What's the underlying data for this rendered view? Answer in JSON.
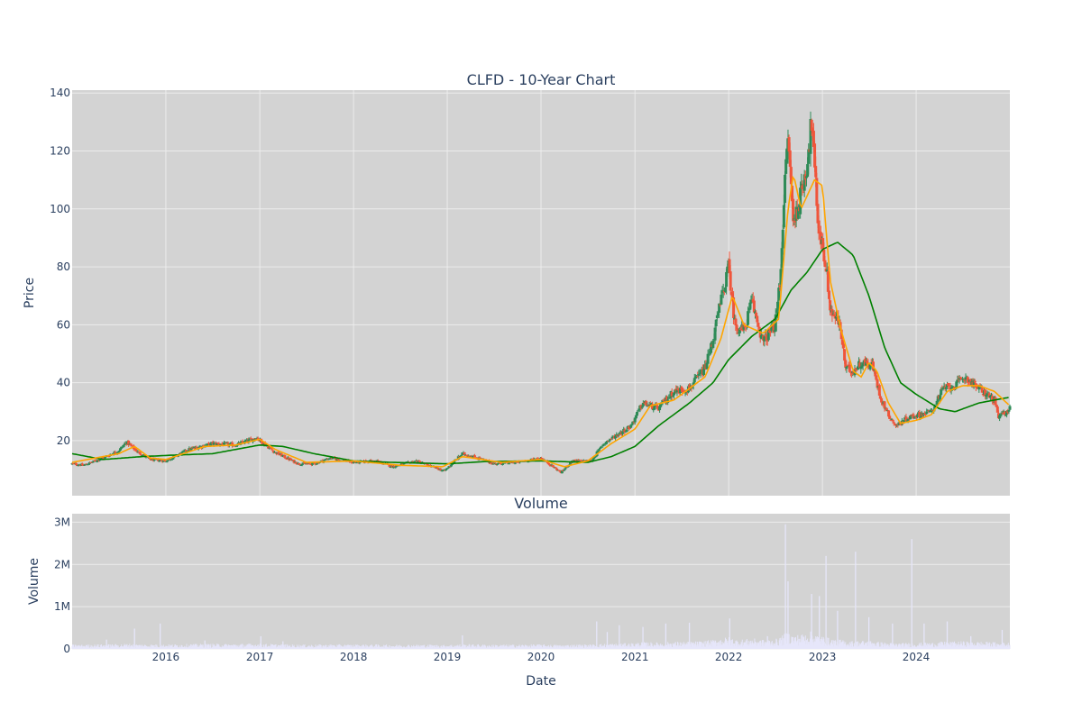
{
  "chart_data": {
    "type": "candlestick",
    "title": "CLFD - 10-Year Chart",
    "subplot_title": "Volume",
    "xlabel": "Date",
    "price_axis": {
      "label": "Price",
      "ticks": [
        20,
        40,
        60,
        80,
        100,
        120,
        140
      ],
      "tick_labels": [
        "20",
        "40",
        "60",
        "80",
        "100",
        "120",
        "140"
      ],
      "range": [
        1,
        141
      ],
      "grid": true
    },
    "volume_axis": {
      "label": "Volume",
      "ticks": [
        0,
        1000000,
        2000000,
        3000000
      ],
      "tick_labels": [
        "0",
        "1M",
        "2M",
        "3M"
      ],
      "range": [
        0,
        3200000
      ],
      "grid": true
    },
    "x_axis": {
      "range": [
        "2015-01-01",
        "2024-12-31"
      ],
      "ticks": [
        "2016-01-01",
        "2017-01-01",
        "2018-01-01",
        "2019-01-01",
        "2020-01-01",
        "2021-01-01",
        "2022-01-01",
        "2023-01-01",
        "2024-01-01"
      ],
      "tick_labels": [
        "2016",
        "2017",
        "2018",
        "2019",
        "2020",
        "2021",
        "2022",
        "2023",
        "2024"
      ]
    },
    "price_keypoints": [
      [
        "2015-01-01",
        12
      ],
      [
        "2015-02-15",
        11.5
      ],
      [
        "2015-05-01",
        14
      ],
      [
        "2015-07-01",
        16.5
      ],
      [
        "2015-08-01",
        19.5
      ],
      [
        "2015-09-15",
        16
      ],
      [
        "2015-11-01",
        13.5
      ],
      [
        "2016-01-01",
        13
      ],
      [
        "2016-04-01",
        17
      ],
      [
        "2016-07-01",
        19
      ],
      [
        "2016-10-01",
        18.5
      ],
      [
        "2016-12-20",
        21
      ],
      [
        "2017-03-01",
        16
      ],
      [
        "2017-06-01",
        12
      ],
      [
        "2017-08-01",
        12
      ],
      [
        "2017-10-01",
        14
      ],
      [
        "2018-01-01",
        12.5
      ],
      [
        "2018-04-01",
        13
      ],
      [
        "2018-06-01",
        11
      ],
      [
        "2018-09-01",
        13
      ],
      [
        "2018-12-20",
        9.5
      ],
      [
        "2019-03-01",
        15.5
      ],
      [
        "2019-05-01",
        14
      ],
      [
        "2019-07-01",
        12
      ],
      [
        "2019-10-01",
        12.5
      ],
      [
        "2020-01-01",
        14
      ],
      [
        "2020-03-20",
        9
      ],
      [
        "2020-05-01",
        13
      ],
      [
        "2020-07-15",
        13
      ],
      [
        "2020-09-01",
        19
      ],
      [
        "2020-12-15",
        25
      ],
      [
        "2021-02-01",
        33
      ],
      [
        "2021-04-01",
        31
      ],
      [
        "2021-06-01",
        37
      ],
      [
        "2021-08-01",
        38
      ],
      [
        "2021-10-01",
        45
      ],
      [
        "2021-11-01",
        55
      ],
      [
        "2021-12-01",
        68
      ],
      [
        "2022-01-01",
        80
      ],
      [
        "2022-01-25",
        60
      ],
      [
        "2022-03-01",
        58
      ],
      [
        "2022-04-01",
        68
      ],
      [
        "2022-05-15",
        54
      ],
      [
        "2022-07-01",
        60
      ],
      [
        "2022-07-20",
        75
      ],
      [
        "2022-08-05",
        105
      ],
      [
        "2022-08-20",
        125
      ],
      [
        "2022-09-10",
        95
      ],
      [
        "2022-10-10",
        105
      ],
      [
        "2022-11-01",
        115
      ],
      [
        "2022-11-20",
        130
      ],
      [
        "2022-12-15",
        95
      ],
      [
        "2023-01-15",
        80
      ],
      [
        "2023-02-01",
        65
      ],
      [
        "2023-03-10",
        60
      ],
      [
        "2023-04-01",
        45
      ],
      [
        "2023-05-01",
        44
      ],
      [
        "2023-06-01",
        47
      ],
      [
        "2023-07-15",
        46
      ],
      [
        "2023-08-15",
        35
      ],
      [
        "2023-09-15",
        29
      ],
      [
        "2023-10-15",
        25
      ],
      [
        "2023-12-01",
        28
      ],
      [
        "2024-03-01",
        30
      ],
      [
        "2024-04-15",
        38
      ],
      [
        "2024-06-01",
        39
      ],
      [
        "2024-07-10",
        42
      ],
      [
        "2024-09-01",
        38
      ],
      [
        "2024-11-01",
        34
      ],
      [
        "2024-11-15",
        28
      ],
      [
        "2024-12-31",
        31
      ]
    ],
    "ma_short_keypoints": [
      [
        "2015-01-01",
        12.5
      ],
      [
        "2015-07-01",
        15.5
      ],
      [
        "2015-09-01",
        18
      ],
      [
        "2015-11-01",
        14
      ],
      [
        "2016-01-01",
        13.5
      ],
      [
        "2016-06-01",
        18
      ],
      [
        "2016-10-01",
        18.5
      ],
      [
        "2017-01-01",
        20.5
      ],
      [
        "2017-03-01",
        17
      ],
      [
        "2017-07-01",
        12.5
      ],
      [
        "2018-01-01",
        13
      ],
      [
        "2018-07-01",
        11.5
      ],
      [
        "2018-12-15",
        11
      ],
      [
        "2019-03-01",
        14.5
      ],
      [
        "2019-08-01",
        12.5
      ],
      [
        "2020-01-01",
        13.5
      ],
      [
        "2020-04-01",
        11
      ],
      [
        "2020-07-01",
        13
      ],
      [
        "2020-10-01",
        19
      ],
      [
        "2021-01-01",
        24
      ],
      [
        "2021-03-01",
        32
      ],
      [
        "2021-06-01",
        34
      ],
      [
        "2021-10-01",
        42
      ],
      [
        "2021-12-01",
        55
      ],
      [
        "2022-01-15",
        70
      ],
      [
        "2022-03-01",
        60
      ],
      [
        "2022-05-15",
        57
      ],
      [
        "2022-07-15",
        62
      ],
      [
        "2022-08-20",
        100
      ],
      [
        "2022-09-10",
        112
      ],
      [
        "2022-10-10",
        100
      ],
      [
        "2022-12-01",
        110
      ],
      [
        "2023-01-01",
        108
      ],
      [
        "2023-02-01",
        75
      ],
      [
        "2023-03-15",
        58
      ],
      [
        "2023-05-01",
        44
      ],
      [
        "2023-06-01",
        42
      ],
      [
        "2023-07-01",
        47
      ],
      [
        "2023-08-01",
        44
      ],
      [
        "2023-09-15",
        33
      ],
      [
        "2023-11-01",
        26
      ],
      [
        "2024-01-01",
        27
      ],
      [
        "2024-03-01",
        29
      ],
      [
        "2024-05-01",
        37
      ],
      [
        "2024-07-01",
        39
      ],
      [
        "2024-09-01",
        39
      ],
      [
        "2024-11-01",
        37
      ],
      [
        "2024-12-31",
        32
      ]
    ],
    "ma_long_keypoints": [
      [
        "2015-01-01",
        15.5
      ],
      [
        "2015-05-01",
        13.5
      ],
      [
        "2015-10-01",
        14.5
      ],
      [
        "2016-02-01",
        15
      ],
      [
        "2016-07-01",
        15.5
      ],
      [
        "2016-10-01",
        17
      ],
      [
        "2017-01-01",
        18.5
      ],
      [
        "2017-04-01",
        18
      ],
      [
        "2017-08-01",
        15.5
      ],
      [
        "2018-01-01",
        13
      ],
      [
        "2018-06-01",
        12.5
      ],
      [
        "2019-01-01",
        12
      ],
      [
        "2019-06-01",
        12.8
      ],
      [
        "2020-01-01",
        13
      ],
      [
        "2020-07-01",
        12.5
      ],
      [
        "2020-10-01",
        14.5
      ],
      [
        "2021-01-01",
        18
      ],
      [
        "2021-04-01",
        25
      ],
      [
        "2021-08-01",
        33
      ],
      [
        "2021-11-01",
        40
      ],
      [
        "2022-01-01",
        48
      ],
      [
        "2022-04-01",
        56
      ],
      [
        "2022-07-01",
        62
      ],
      [
        "2022-09-01",
        72
      ],
      [
        "2022-11-01",
        78
      ],
      [
        "2023-01-01",
        86
      ],
      [
        "2023-03-01",
        88.5
      ],
      [
        "2023-05-01",
        84
      ],
      [
        "2023-07-01",
        70
      ],
      [
        "2023-09-01",
        52
      ],
      [
        "2023-11-01",
        40
      ],
      [
        "2024-01-01",
        36
      ],
      [
        "2024-04-01",
        31
      ],
      [
        "2024-06-01",
        30
      ],
      [
        "2024-09-01",
        33
      ],
      [
        "2024-12-31",
        35
      ]
    ],
    "volume_spikes": [
      [
        "2015-05-15",
        220000
      ],
      [
        "2015-09-01",
        480000
      ],
      [
        "2015-12-10",
        600000
      ],
      [
        "2016-06-01",
        200000
      ],
      [
        "2017-01-05",
        300000
      ],
      [
        "2017-04-01",
        180000
      ],
      [
        "2019-03-01",
        320000
      ],
      [
        "2020-08-05",
        650000
      ],
      [
        "2020-09-15",
        400000
      ],
      [
        "2020-11-01",
        560000
      ],
      [
        "2021-02-01",
        520000
      ],
      [
        "2021-05-01",
        600000
      ],
      [
        "2021-08-01",
        620000
      ],
      [
        "2022-01-05",
        720000
      ],
      [
        "2022-06-01",
        300000
      ],
      [
        "2022-08-10",
        2950000
      ],
      [
        "2022-08-20",
        1600000
      ],
      [
        "2022-11-20",
        1300000
      ],
      [
        "2022-12-20",
        1250000
      ],
      [
        "2023-01-15",
        2200000
      ],
      [
        "2023-03-01",
        900000
      ],
      [
        "2023-05-10",
        2300000
      ],
      [
        "2023-07-01",
        750000
      ],
      [
        "2023-10-01",
        600000
      ],
      [
        "2023-12-15",
        2600000
      ],
      [
        "2024-02-01",
        600000
      ],
      [
        "2024-05-01",
        650000
      ],
      [
        "2024-08-01",
        300000
      ],
      [
        "2024-12-01",
        450000
      ]
    ],
    "colors": {
      "plot_bg": "#d3d3d3",
      "grid": "#ececec",
      "increasing": "#2e8b57",
      "decreasing": "#ef553b",
      "ma_short": "#ffa500",
      "ma_long": "#008000",
      "volume": "#e6e6fa",
      "text": "#2a3f5f"
    }
  }
}
